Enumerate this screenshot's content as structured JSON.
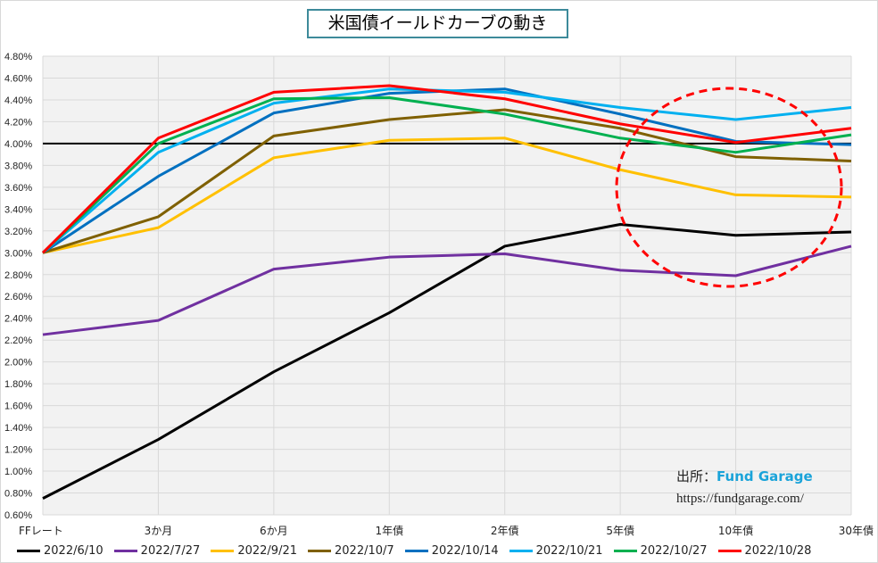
{
  "chart_data": {
    "type": "line",
    "title": "米国債イールドカーブの動き",
    "categories": [
      "FFレート",
      "3か月",
      "6か月",
      "1年債",
      "2年債",
      "5年債",
      "10年債",
      "30年債"
    ],
    "ylim": [
      0.6,
      4.8
    ],
    "ytick_step": 0.2,
    "ytick_format": "percent-2dp",
    "grid": true,
    "legend_position": "bottom",
    "reference_line": {
      "value": 4.0,
      "color": "#000000"
    },
    "series": [
      {
        "name": "2022/6/10",
        "color": "#000000",
        "values": [
          0.75,
          1.29,
          1.91,
          2.45,
          3.06,
          3.26,
          3.16,
          3.19
        ]
      },
      {
        "name": "2022/7/27",
        "color": "#7030a0",
        "values": [
          2.25,
          2.38,
          2.85,
          2.96,
          2.99,
          2.84,
          2.79,
          3.06
        ]
      },
      {
        "name": "2022/9/21",
        "color": "#ffc000",
        "values": [
          3.0,
          3.23,
          3.87,
          4.03,
          4.05,
          3.76,
          3.53,
          3.51
        ]
      },
      {
        "name": "2022/10/7",
        "color": "#7f6000",
        "values": [
          3.0,
          3.33,
          4.07,
          4.22,
          4.31,
          4.14,
          3.88,
          3.84
        ]
      },
      {
        "name": "2022/10/14",
        "color": "#0070c0",
        "values": [
          3.0,
          3.7,
          4.28,
          4.46,
          4.5,
          4.27,
          4.02,
          3.99
        ]
      },
      {
        "name": "2022/10/21",
        "color": "#00b0f0",
        "values": [
          3.0,
          3.92,
          4.37,
          4.5,
          4.47,
          4.33,
          4.22,
          4.33
        ]
      },
      {
        "name": "2022/10/27",
        "color": "#00b050",
        "values": [
          3.0,
          4.0,
          4.41,
          4.42,
          4.27,
          4.05,
          3.92,
          4.08
        ]
      },
      {
        "name": "2022/10/28",
        "color": "#ff0000",
        "values": [
          3.0,
          4.05,
          4.47,
          4.53,
          4.41,
          4.18,
          4.01,
          4.14
        ]
      }
    ],
    "annotation": {
      "type": "dashed-circle",
      "color": "#ff0000",
      "around": "10年債"
    }
  },
  "source": {
    "label": "出所：",
    "brand": "Fund Garage",
    "url": "https://fundgarage.com/"
  }
}
